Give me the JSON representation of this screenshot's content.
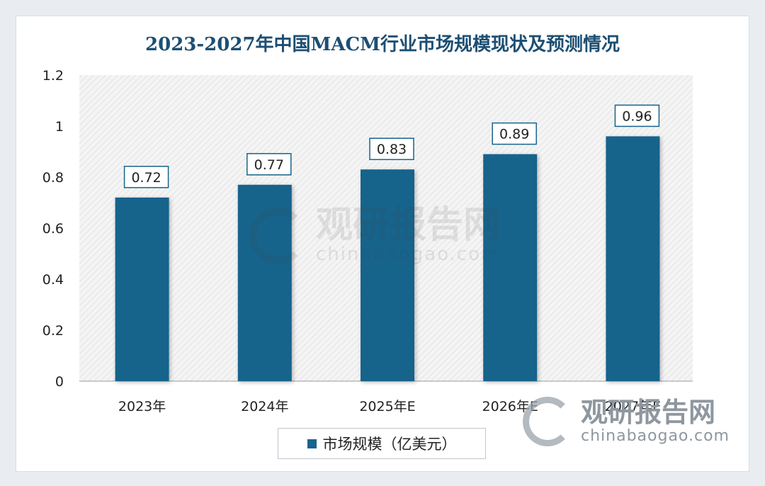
{
  "chart_data": {
    "type": "bar",
    "title": "2023-2027年中国MACM行业市场规模现状及预测情况",
    "categories": [
      "2023年",
      "2024年",
      "2025年E",
      "2026年E",
      "2027年E"
    ],
    "series": [
      {
        "name": "市场规模（亿美元）",
        "values": [
          0.72,
          0.77,
          0.83,
          0.89,
          0.96
        ]
      }
    ],
    "data_labels": [
      "0.72",
      "0.77",
      "0.83",
      "0.89",
      "0.96"
    ],
    "yticks": [
      "0",
      "0.2",
      "0.4",
      "0.6",
      "0.8",
      "1",
      "1.2"
    ],
    "ylim": [
      0,
      1.2
    ],
    "xlabel": "",
    "ylabel": "",
    "grid": false,
    "legend_position": "bottom-center",
    "bar_color": "#17648c",
    "label_border_color": "#17648c"
  },
  "legend": {
    "label": "市场规模（亿美元）"
  },
  "watermark": {
    "center_cn": "观研报告网",
    "center_en": "chinabaogao.com",
    "corner_cn": "观研报告网",
    "corner_en": "chinabaogao.com"
  }
}
